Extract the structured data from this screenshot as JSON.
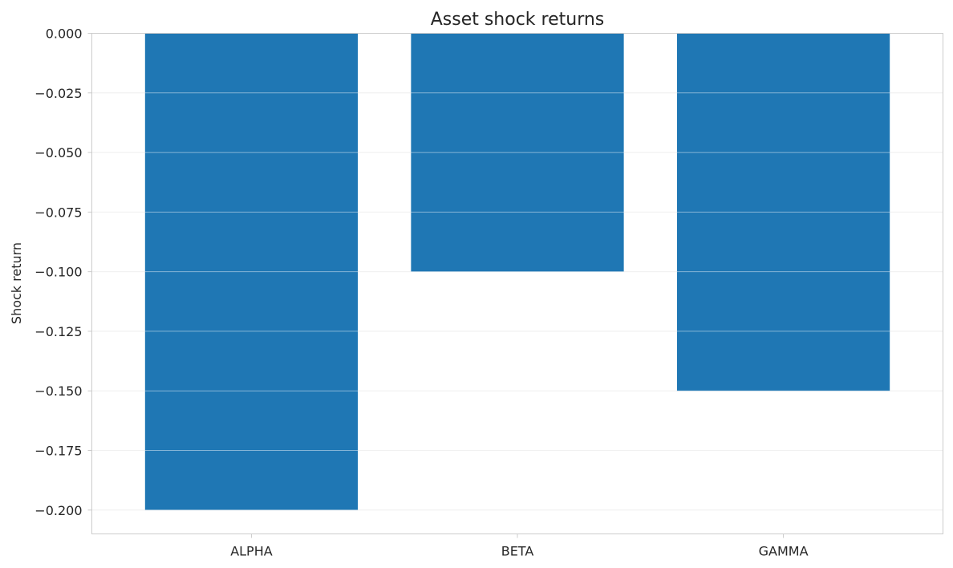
{
  "chart_data": {
    "type": "bar",
    "title": "Asset shock returns",
    "xlabel": "",
    "ylabel": "Shock return",
    "categories": [
      "ALPHA",
      "BETA",
      "GAMMA"
    ],
    "values": [
      -0.2,
      -0.1,
      -0.15
    ],
    "ylim": [
      -0.21,
      0.0
    ],
    "yticks": [
      0.0,
      -0.025,
      -0.05,
      -0.075,
      -0.1,
      -0.125,
      -0.15,
      -0.175,
      -0.2
    ],
    "ytick_labels": [
      "0.000",
      "−0.025",
      "−0.050",
      "−0.075",
      "−0.100",
      "−0.125",
      "−0.150",
      "−0.175",
      "−0.200"
    ],
    "grid": true,
    "bar_color": "#1f77b4"
  }
}
